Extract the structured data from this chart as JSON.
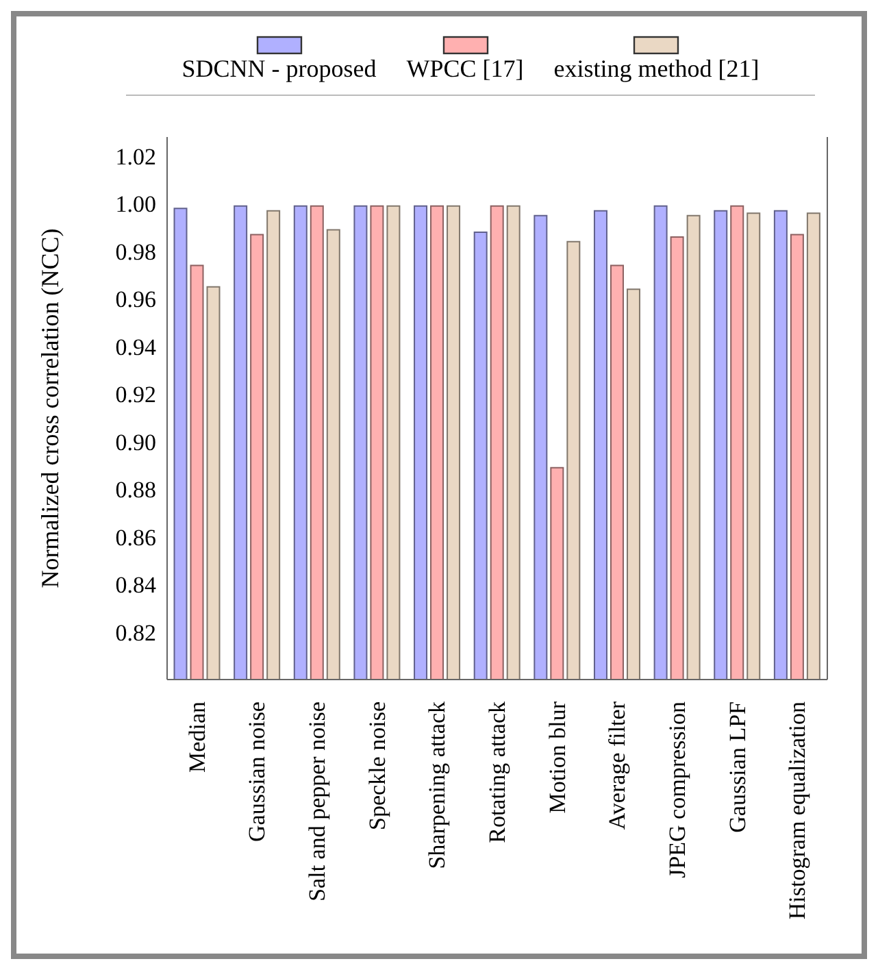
{
  "chart_data": {
    "type": "bar",
    "ylabel": "Normalized cross correlation (NCC)",
    "categories": [
      "Median",
      "Gaussian noise",
      "Salt and pepper noise",
      "Speckle noise",
      "Sharpening attack",
      "Rotating attack",
      "Motion blur",
      "Average filter",
      "JPEG compression",
      "Gaussian LPF",
      "Histogram equalization"
    ],
    "series": [
      {
        "name": "SDCNN - proposed",
        "color": "#b0b0ff",
        "values": [
          0.998,
          0.999,
          0.999,
          0.999,
          0.999,
          0.988,
          0.995,
          0.997,
          0.999,
          0.997,
          0.997
        ]
      },
      {
        "name": "WPCC [17]",
        "color": "#ffb0b0",
        "values": [
          0.974,
          0.987,
          0.999,
          0.999,
          0.999,
          0.999,
          0.889,
          0.974,
          0.986,
          0.999,
          0.987
        ]
      },
      {
        "name": "existing method [21]",
        "color": "#ead8c4",
        "values": [
          0.965,
          0.997,
          0.989,
          0.999,
          0.999,
          0.999,
          0.984,
          0.964,
          0.995,
          0.996,
          0.996
        ]
      }
    ],
    "ylim": [
      0.8,
      1.028
    ],
    "yticks": [
      0.82,
      0.84,
      0.86,
      0.88,
      {
        "value": 0.9,
        "label": "0.90"
      },
      0.92,
      0.94,
      0.96,
      0.98,
      {
        "value": 1.0,
        "label": "1.00"
      },
      1.02
    ],
    "grid": false,
    "legend": "top"
  }
}
